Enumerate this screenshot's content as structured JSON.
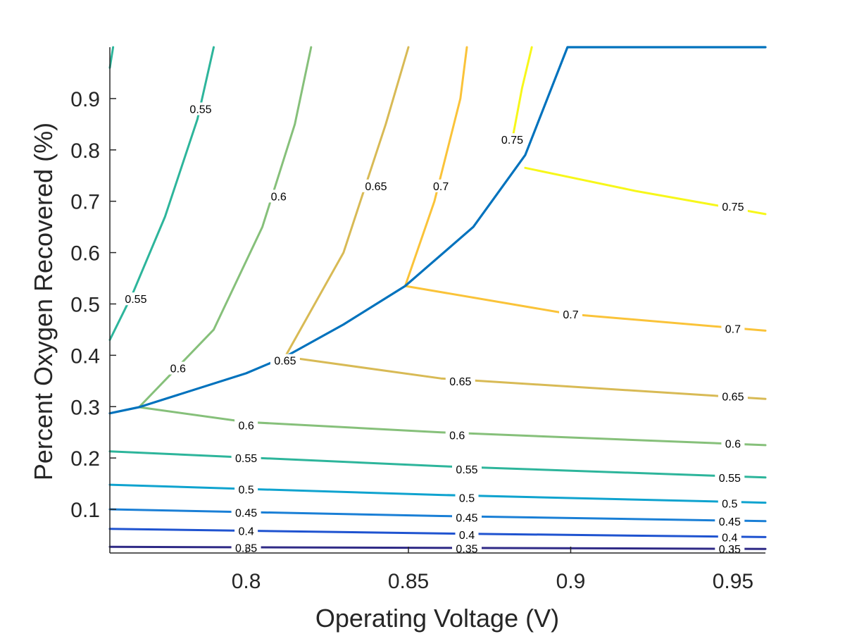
{
  "chart_data": {
    "type": "line",
    "title": "",
    "xlabel": "Operating Voltage (V)",
    "ylabel": "Percent Oxygen Recovered (%)",
    "xlim": [
      0.758,
      0.96
    ],
    "ylim": [
      0.015,
      1.0
    ],
    "xticks": [
      0.8,
      0.85,
      0.9,
      0.95
    ],
    "xtick_labels": [
      "0.8",
      "0.85",
      "0.9",
      "0.95"
    ],
    "yticks": [
      0.1,
      0.2,
      0.3,
      0.4,
      0.5,
      0.6,
      0.7,
      0.8,
      0.9
    ],
    "ytick_labels": [
      "0.1",
      "0.2",
      "0.3",
      "0.4",
      "0.5",
      "0.6",
      "0.7",
      "0.8",
      "0.9"
    ],
    "grid": false,
    "legend": "none",
    "plot_subtype": "contour",
    "series": [
      {
        "level": 0.35,
        "color": "#2f2a86",
        "x": [
          0.758,
          0.86,
          0.96
        ],
        "y": [
          0.027,
          0.025,
          0.023
        ]
      },
      {
        "level": 0.4,
        "color": "#1f53d0",
        "x": [
          0.758,
          0.86,
          0.96
        ],
        "y": [
          0.062,
          0.053,
          0.046
        ]
      },
      {
        "level": 0.45,
        "color": "#1a7fd6",
        "x": [
          0.758,
          0.86,
          0.96
        ],
        "y": [
          0.1,
          0.087,
          0.077
        ]
      },
      {
        "level": 0.5,
        "color": "#0fa3cf",
        "x": [
          0.758,
          0.86,
          0.96
        ],
        "y": [
          0.148,
          0.128,
          0.113
        ]
      },
      {
        "level": 0.55,
        "color": "#2db59b",
        "x": [
          0.758,
          0.86,
          0.96
        ],
        "y": [
          0.213,
          0.184,
          0.162
        ]
      },
      {
        "level": 0.55,
        "color": "#2db59b",
        "x": [
          0.758,
          0.765,
          0.775,
          0.785,
          0.79
        ],
        "y": [
          0.43,
          0.52,
          0.67,
          0.86,
          1.0
        ]
      },
      {
        "level": 0.55,
        "color": "#2db59b",
        "x": [
          0.758,
          0.759
        ],
        "y": [
          0.96,
          1.0
        ]
      },
      {
        "level": 0.6,
        "color": "#86c07a",
        "x": [
          0.767,
          0.8,
          0.86,
          0.96
        ],
        "y": [
          0.299,
          0.27,
          0.25,
          0.225
        ]
      },
      {
        "level": 0.6,
        "color": "#86c07a",
        "x": [
          0.767,
          0.79,
          0.805,
          0.815,
          0.82
        ],
        "y": [
          0.299,
          0.45,
          0.65,
          0.85,
          1.0
        ]
      },
      {
        "level": 0.65,
        "color": "#d8ba55",
        "x": [
          0.812,
          0.86,
          0.96
        ],
        "y": [
          0.397,
          0.355,
          0.315
        ]
      },
      {
        "level": 0.65,
        "color": "#d8ba55",
        "x": [
          0.812,
          0.83,
          0.843,
          0.85
        ],
        "y": [
          0.397,
          0.6,
          0.85,
          1.0
        ]
      },
      {
        "level": 0.7,
        "color": "#fac339",
        "x": [
          0.849,
          0.9,
          0.96
        ],
        "y": [
          0.535,
          0.48,
          0.448
        ]
      },
      {
        "level": 0.7,
        "color": "#fac339",
        "x": [
          0.849,
          0.858,
          0.866,
          0.868
        ],
        "y": [
          0.535,
          0.7,
          0.9,
          1.0
        ]
      },
      {
        "level": 0.75,
        "color": "#f7f71a",
        "x": [
          0.886,
          0.92,
          0.96
        ],
        "y": [
          0.765,
          0.72,
          0.675
        ]
      },
      {
        "level": 0.75,
        "color": "#f7f71a",
        "x": [
          0.882,
          0.885,
          0.888
        ],
        "y": [
          0.82,
          0.92,
          1.0
        ]
      },
      {
        "name": "",
        "color": "#0072bd",
        "x": [
          0.758,
          0.767,
          0.8,
          0.812,
          0.83,
          0.849,
          0.87,
          0.886,
          0.899,
          0.96
        ],
        "y": [
          0.287,
          0.299,
          0.365,
          0.397,
          0.46,
          0.535,
          0.65,
          0.79,
          1.0,
          1.0
        ]
      }
    ],
    "contour_labels": [
      {
        "text": "0.35",
        "x": 0.8,
        "y": 0.025
      },
      {
        "text": "0.35",
        "x": 0.868,
        "y": 0.024
      },
      {
        "text": "0.35",
        "x": 0.949,
        "y": 0.023
      },
      {
        "text": "0.4",
        "x": 0.8,
        "y": 0.058
      },
      {
        "text": "0.4",
        "x": 0.868,
        "y": 0.051
      },
      {
        "text": "0.4",
        "x": 0.949,
        "y": 0.046
      },
      {
        "text": "0.45",
        "x": 0.8,
        "y": 0.094
      },
      {
        "text": "0.45",
        "x": 0.868,
        "y": 0.084
      },
      {
        "text": "0.45",
        "x": 0.949,
        "y": 0.077
      },
      {
        "text": "0.5",
        "x": 0.8,
        "y": 0.139
      },
      {
        "text": "0.5",
        "x": 0.868,
        "y": 0.123
      },
      {
        "text": "0.5",
        "x": 0.949,
        "y": 0.112
      },
      {
        "text": "0.55",
        "x": 0.8,
        "y": 0.2
      },
      {
        "text": "0.55",
        "x": 0.868,
        "y": 0.178
      },
      {
        "text": "0.55",
        "x": 0.949,
        "y": 0.162
      },
      {
        "text": "0.6",
        "x": 0.8,
        "y": 0.264
      },
      {
        "text": "0.6",
        "x": 0.865,
        "y": 0.245
      },
      {
        "text": "0.6",
        "x": 0.95,
        "y": 0.228
      },
      {
        "text": "0.65",
        "x": 0.866,
        "y": 0.35
      },
      {
        "text": "0.65",
        "x": 0.95,
        "y": 0.32
      },
      {
        "text": "0.7",
        "x": 0.9,
        "y": 0.48
      },
      {
        "text": "0.7",
        "x": 0.95,
        "y": 0.452
      },
      {
        "text": "0.75",
        "x": 0.95,
        "y": 0.69
      },
      {
        "text": "0.55",
        "x": 0.766,
        "y": 0.51
      },
      {
        "text": "0.55",
        "x": 0.786,
        "y": 0.88
      },
      {
        "text": "0.6",
        "x": 0.779,
        "y": 0.375
      },
      {
        "text": "0.6",
        "x": 0.81,
        "y": 0.71
      },
      {
        "text": "0.65",
        "x": 0.812,
        "y": 0.39
      },
      {
        "text": "0.65",
        "x": 0.84,
        "y": 0.73
      },
      {
        "text": "0.7",
        "x": 0.86,
        "y": 0.73
      },
      {
        "text": "0.75",
        "x": 0.882,
        "y": 0.82
      }
    ]
  }
}
